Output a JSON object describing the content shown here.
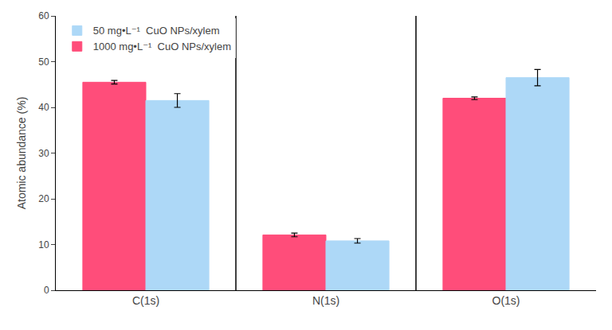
{
  "chart_data": {
    "type": "bar",
    "categories": [
      "C(1s)",
      "N(1s)",
      "O(1s)"
    ],
    "series": [
      {
        "name": "1000 mg•L⁻¹  CuO NPs/xylem",
        "color": "#FF4D7A",
        "values": [
          45.5,
          12.1,
          42.0
        ],
        "errors": [
          0.4,
          0.4,
          0.3
        ]
      },
      {
        "name": "50 mg•L⁻¹  CuO NPs/xylem",
        "color": "#ADD8F7",
        "values": [
          41.5,
          10.8,
          46.5
        ],
        "errors": [
          1.5,
          0.5,
          1.8
        ]
      }
    ],
    "ylabel": "Atomic abundance (%)",
    "ylim": [
      0,
      60
    ],
    "yticks": [
      0,
      10,
      20,
      30,
      40,
      50,
      60
    ],
    "grid": false,
    "legend": "upper left"
  }
}
